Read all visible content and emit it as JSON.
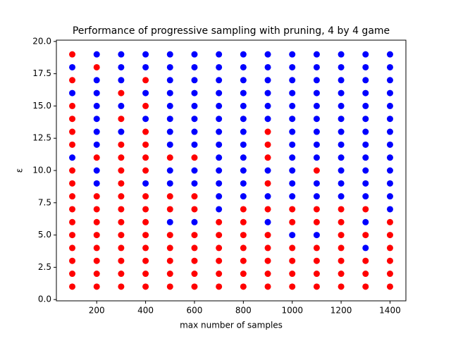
{
  "chart_data": {
    "type": "scatter",
    "title": "Performance of progressive sampling with pruning, 4 by 4 game",
    "x_label": "max number of samples",
    "y_label": "ε",
    "xlim": [
      35,
      1465
    ],
    "ylim": [
      -0.1,
      20.1
    ],
    "xticks": [
      200,
      400,
      600,
      800,
      1000,
      1200,
      1400
    ],
    "yticks": [
      {
        "value": 0,
        "label": "0.0"
      },
      {
        "value": 2.5,
        "label": "2.5"
      },
      {
        "value": 5,
        "label": "5.0"
      },
      {
        "value": 7.5,
        "label": "7.5"
      },
      {
        "value": 10,
        "label": "10.0"
      },
      {
        "value": 12.5,
        "label": "12.5"
      },
      {
        "value": 15,
        "label": "15.0"
      },
      {
        "value": 17.5,
        "label": "17.5"
      },
      {
        "value": 20,
        "label": "20.0"
      }
    ],
    "series": [
      {
        "color": "#ff0000",
        "x": [
          100,
          100,
          100,
          100,
          100,
          100,
          100,
          100,
          100,
          100,
          100,
          100,
          100,
          100,
          100,
          100,
          200,
          200,
          200,
          200,
          200,
          200,
          200,
          200,
          200,
          200,
          300,
          300,
          300,
          300,
          300,
          300,
          300,
          300,
          300,
          300,
          300,
          300,
          300,
          300,
          400,
          400,
          400,
          400,
          400,
          400,
          400,
          400,
          400,
          400,
          400,
          400,
          400,
          400,
          500,
          500,
          500,
          500,
          500,
          500,
          500,
          500,
          600,
          600,
          600,
          600,
          600,
          600,
          600,
          600,
          700,
          700,
          700,
          700,
          700,
          700,
          800,
          800,
          800,
          800,
          800,
          800,
          800,
          900,
          900,
          900,
          900,
          900,
          900,
          900,
          900,
          900,
          900,
          1000,
          1000,
          1000,
          1000,
          1000,
          1000,
          1100,
          1100,
          1100,
          1100,
          1100,
          1100,
          1100,
          1200,
          1200,
          1200,
          1200,
          1200,
          1200,
          1200,
          1300,
          1300,
          1300,
          1300,
          1300,
          1400,
          1400,
          1400,
          1400,
          1400,
          1400
        ],
        "values": [
          19,
          17,
          15,
          14,
          13,
          12,
          10,
          9,
          8,
          7,
          6,
          5,
          4,
          3,
          2,
          1,
          18,
          11,
          8,
          7,
          6,
          5,
          4,
          3,
          2,
          1,
          16,
          14,
          12,
          11,
          10,
          9,
          8,
          7,
          6,
          5,
          4,
          3,
          2,
          1,
          17,
          15,
          13,
          12,
          11,
          10,
          8,
          7,
          6,
          5,
          4,
          3,
          2,
          1,
          11,
          8,
          7,
          5,
          4,
          3,
          2,
          1,
          11,
          8,
          7,
          5,
          4,
          3,
          2,
          1,
          6,
          5,
          4,
          3,
          2,
          1,
          7,
          6,
          5,
          4,
          3,
          2,
          1,
          13,
          12,
          11,
          9,
          7,
          5,
          4,
          3,
          2,
          1,
          7,
          6,
          4,
          3,
          2,
          1,
          10,
          7,
          6,
          4,
          3,
          2,
          1,
          7,
          6,
          5,
          4,
          3,
          2,
          1,
          7,
          5,
          3,
          2,
          1,
          6,
          5,
          4,
          3,
          2,
          1
        ]
      },
      {
        "color": "#0000ff",
        "x": [
          100,
          100,
          100,
          200,
          200,
          200,
          200,
          200,
          200,
          200,
          200,
          200,
          300,
          300,
          300,
          300,
          300,
          400,
          400,
          400,
          400,
          400,
          500,
          500,
          500,
          500,
          500,
          500,
          500,
          500,
          500,
          500,
          500,
          600,
          600,
          600,
          600,
          600,
          600,
          600,
          600,
          600,
          600,
          600,
          700,
          700,
          700,
          700,
          700,
          700,
          700,
          700,
          700,
          700,
          700,
          700,
          700,
          800,
          800,
          800,
          800,
          800,
          800,
          800,
          800,
          800,
          800,
          800,
          800,
          900,
          900,
          900,
          900,
          900,
          900,
          900,
          900,
          900,
          1000,
          1000,
          1000,
          1000,
          1000,
          1000,
          1000,
          1000,
          1000,
          1000,
          1000,
          1000,
          1000,
          1100,
          1100,
          1100,
          1100,
          1100,
          1100,
          1100,
          1100,
          1100,
          1100,
          1100,
          1100,
          1200,
          1200,
          1200,
          1200,
          1200,
          1200,
          1200,
          1200,
          1200,
          1200,
          1200,
          1200,
          1300,
          1300,
          1300,
          1300,
          1300,
          1300,
          1300,
          1300,
          1300,
          1300,
          1300,
          1300,
          1300,
          1300,
          1400,
          1400,
          1400,
          1400,
          1400,
          1400,
          1400,
          1400,
          1400,
          1400,
          1400,
          1400,
          1400
        ],
        "values": [
          18,
          16,
          11,
          19,
          17,
          16,
          15,
          14,
          13,
          12,
          10,
          9,
          19,
          18,
          17,
          15,
          13,
          19,
          18,
          16,
          14,
          9,
          19,
          18,
          17,
          16,
          15,
          14,
          13,
          12,
          10,
          9,
          6,
          19,
          18,
          17,
          16,
          15,
          14,
          13,
          12,
          10,
          9,
          6,
          19,
          18,
          17,
          16,
          15,
          14,
          13,
          12,
          11,
          10,
          9,
          8,
          7,
          19,
          18,
          17,
          16,
          15,
          14,
          13,
          12,
          11,
          10,
          9,
          8,
          19,
          18,
          17,
          16,
          15,
          14,
          10,
          8,
          6,
          19,
          18,
          17,
          16,
          15,
          14,
          13,
          12,
          11,
          10,
          9,
          8,
          5,
          19,
          18,
          17,
          16,
          15,
          14,
          13,
          12,
          11,
          9,
          8,
          5,
          19,
          18,
          17,
          16,
          15,
          14,
          13,
          12,
          11,
          10,
          9,
          8,
          19,
          18,
          17,
          16,
          15,
          14,
          13,
          12,
          11,
          10,
          9,
          8,
          6,
          4,
          19,
          18,
          17,
          16,
          15,
          14,
          13,
          12,
          11,
          10,
          9,
          8,
          7
        ]
      }
    ]
  }
}
